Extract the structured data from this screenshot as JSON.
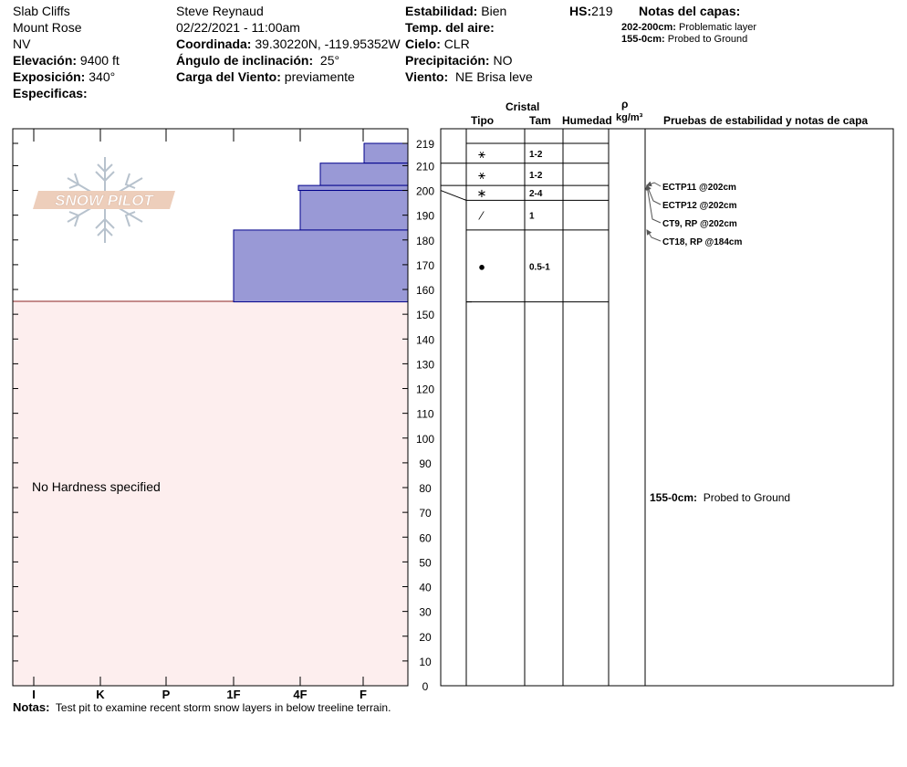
{
  "site": {
    "location": "Slab Cliffs",
    "region": "Mount Rose",
    "state": "NV",
    "elevation_label": "Elevación:",
    "elevation": "9400 ft",
    "aspect_label": "Exposición:",
    "aspect": "340°",
    "specifics_label": "Especificas:"
  },
  "observation": {
    "observer": "Steve Reynaud",
    "datetime": "02/22/2021 - 11:00am",
    "coord_label": "Coordinada:",
    "coord": "39.30220N, -119.95352W",
    "slope_label": "Ángulo de inclinación:",
    "slope": "25°",
    "wind_load_label": "Carga del Viento:",
    "wind_load": "previamente"
  },
  "conditions": {
    "stability_label": "Estabilidad:",
    "stability": "Bien",
    "air_temp_label": "Temp. del aire:",
    "sky_label": "Cielo:",
    "sky": "CLR",
    "precip_label": "Precipitación:",
    "precip": "NO",
    "wind_label": "Viento:",
    "wind": "NE Brisa leve",
    "hs_label": "HS:",
    "hs": "219"
  },
  "layer_notes": {
    "title": "Notas del capas:",
    "items": [
      {
        "range": "202-200cm:",
        "note": "Problematic layer"
      },
      {
        "range": "155-0cm:",
        "note": "Probed to Ground"
      }
    ]
  },
  "table_headers": {
    "crystal": "Cristal",
    "type": "Tipo",
    "size": "Tam",
    "moisture": "Humedad",
    "rho": "ρ",
    "density_unit": "kg/m³",
    "tests": "Pruebas de estabilidad y notas de capa"
  },
  "no_hardness": "No Hardness specified",
  "notes_label": "Notas:",
  "notes": "Test pit to examine recent storm snow layers in below treeline terrain.",
  "logo_text": "SNOW PILOT",
  "colors": {
    "layer_fill": "#9999d6",
    "layer_stroke": "#00008b",
    "ground_fill": "#fdeeee",
    "ground_line": "#8b2222"
  },
  "chart_data": {
    "type": "bar",
    "title": "",
    "ylabel": "",
    "xlabel": "",
    "ylim": [
      0,
      219
    ],
    "y_ticks": [
      219,
      210,
      200,
      190,
      180,
      170,
      160,
      150,
      140,
      130,
      120,
      110,
      100,
      90,
      80,
      70,
      60,
      50,
      40,
      30,
      20,
      10,
      0
    ],
    "hardness_categories": [
      "I",
      "K",
      "P",
      "1F",
      "4F",
      "F"
    ],
    "hardness_layers": [
      {
        "top": 219,
        "bottom": 211,
        "hardness": "F+"
      },
      {
        "top": 211,
        "bottom": 202,
        "hardness": "4F-F"
      },
      {
        "top": 202,
        "bottom": 200,
        "hardness": "4F-"
      },
      {
        "top": 200,
        "bottom": 184,
        "hardness": "4F"
      },
      {
        "top": 184,
        "bottom": 155,
        "hardness": "1F"
      }
    ],
    "ground_depth": 155,
    "crystal_layers": [
      {
        "top": 219,
        "bottom": 211,
        "type": "⚹",
        "size": "1-2"
      },
      {
        "top": 211,
        "bottom": 202,
        "type": "⚹",
        "size": "1-2"
      },
      {
        "top": 202,
        "bottom": 196,
        "type": "∗",
        "size": "2-4"
      },
      {
        "top": 196,
        "bottom": 184,
        "type": "⁄",
        "size": "1"
      },
      {
        "top": 184,
        "bottom": 155,
        "type": "●",
        "size": "0.5-1"
      }
    ],
    "stability_tests": [
      {
        "label": "ECTP11 @202cm",
        "depth": 202
      },
      {
        "label": "ECTP12 @202cm",
        "depth": 202
      },
      {
        "label": "CT9, RP @202cm",
        "depth": 202
      },
      {
        "label": "CT18, RP @184cm",
        "depth": 184
      }
    ],
    "layer_note_in_chart": {
      "range": "155-0cm:",
      "note": "Probed to Ground",
      "depth": 80
    }
  }
}
